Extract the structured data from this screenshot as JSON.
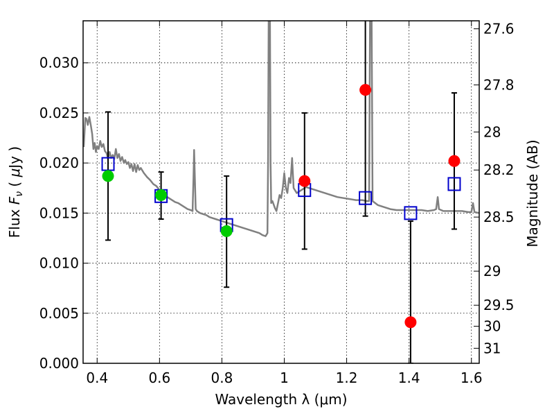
{
  "chart_data": {
    "type": "scatter",
    "xlabel": "Wavelength  λ (μm)",
    "ylabel_parts": [
      "Flux ",
      "F",
      "ν",
      "  ( ",
      "μ",
      "Jy )"
    ],
    "ylabel_right": "Magnitude (AB)",
    "xlim": [
      0.355,
      1.625
    ],
    "ylim": [
      0.0,
      0.0342
    ],
    "x_ticks": [
      0.4,
      0.6,
      0.8,
      1.0,
      1.2,
      1.4,
      1.6
    ],
    "x_tick_labels": [
      "0.4",
      "0.6",
      "0.8",
      "1",
      "1.2",
      "1.4",
      "1.6"
    ],
    "y_ticks": [
      0.0,
      0.005,
      0.01,
      0.015,
      0.02,
      0.025,
      0.03
    ],
    "y_tick_labels": [
      "0.000",
      "0.005",
      "0.010",
      "0.015",
      "0.020",
      "0.025",
      "0.030"
    ],
    "right_ticks": [
      {
        "label": "27.6",
        "flux": 0.0334
      },
      {
        "label": "27.8",
        "flux": 0.0278
      },
      {
        "label": "28",
        "flux": 0.0231
      },
      {
        "label": "28.2",
        "flux": 0.0193
      },
      {
        "label": "28.5",
        "flux": 0.0146
      },
      {
        "label": "29",
        "flux": 0.0092
      },
      {
        "label": "29.5",
        "flux": 0.0058
      },
      {
        "label": "30",
        "flux": 0.0037
      },
      {
        "label": "31",
        "flux": 0.0015
      }
    ],
    "grid": true,
    "model_spectrum": {
      "color": "#808080",
      "points": [
        [
          0.357,
          0.0216
        ],
        [
          0.362,
          0.0245
        ],
        [
          0.366,
          0.0244
        ],
        [
          0.37,
          0.0238
        ],
        [
          0.375,
          0.0246
        ],
        [
          0.38,
          0.0237
        ],
        [
          0.384,
          0.0229
        ],
        [
          0.388,
          0.0214
        ],
        [
          0.392,
          0.022
        ],
        [
          0.396,
          0.0211
        ],
        [
          0.4,
          0.0217
        ],
        [
          0.405,
          0.0214
        ],
        [
          0.41,
          0.0222
        ],
        [
          0.415,
          0.0216
        ],
        [
          0.42,
          0.0219
        ],
        [
          0.425,
          0.0212
        ],
        [
          0.43,
          0.021
        ],
        [
          0.435,
          0.0204
        ],
        [
          0.44,
          0.0211
        ],
        [
          0.445,
          0.0205
        ],
        [
          0.45,
          0.0208
        ],
        [
          0.455,
          0.0204
        ],
        [
          0.46,
          0.0214
        ],
        [
          0.465,
          0.0205
        ],
        [
          0.47,
          0.0209
        ],
        [
          0.475,
          0.0202
        ],
        [
          0.48,
          0.0206
        ],
        [
          0.486,
          0.02
        ],
        [
          0.49,
          0.0203
        ],
        [
          0.495,
          0.0199
        ],
        [
          0.5,
          0.0201
        ],
        [
          0.505,
          0.0195
        ],
        [
          0.51,
          0.0199
        ],
        [
          0.515,
          0.0192
        ],
        [
          0.52,
          0.0199
        ],
        [
          0.525,
          0.0191
        ],
        [
          0.53,
          0.0198
        ],
        [
          0.535,
          0.0193
        ],
        [
          0.54,
          0.0195
        ],
        [
          0.55,
          0.019
        ],
        [
          0.56,
          0.0186
        ],
        [
          0.57,
          0.0183
        ],
        [
          0.58,
          0.0179
        ],
        [
          0.59,
          0.0177
        ],
        [
          0.6,
          0.0173
        ],
        [
          0.61,
          0.017
        ],
        [
          0.62,
          0.0167
        ],
        [
          0.63,
          0.0165
        ],
        [
          0.64,
          0.0163
        ],
        [
          0.65,
          0.0161
        ],
        [
          0.66,
          0.016
        ],
        [
          0.67,
          0.0158
        ],
        [
          0.68,
          0.0156
        ],
        [
          0.69,
          0.0154
        ],
        [
          0.7,
          0.0153
        ],
        [
          0.706,
          0.0152
        ],
        [
          0.709,
          0.0185
        ],
        [
          0.711,
          0.0213
        ],
        [
          0.713,
          0.019
        ],
        [
          0.716,
          0.0154
        ],
        [
          0.72,
          0.0152
        ],
        [
          0.73,
          0.015
        ],
        [
          0.74,
          0.0149
        ],
        [
          0.75,
          0.0148
        ],
        [
          0.76,
          0.0146
        ],
        [
          0.77,
          0.0145
        ],
        [
          0.78,
          0.0144
        ],
        [
          0.79,
          0.0143
        ],
        [
          0.8,
          0.0142
        ],
        [
          0.82,
          0.014
        ],
        [
          0.84,
          0.0138
        ],
        [
          0.86,
          0.0136
        ],
        [
          0.88,
          0.0134
        ],
        [
          0.9,
          0.0132
        ],
        [
          0.92,
          0.013
        ],
        [
          0.93,
          0.0128
        ],
        [
          0.94,
          0.0127
        ],
        [
          0.946,
          0.013
        ],
        [
          0.948,
          0.02
        ],
        [
          0.95,
          0.035
        ],
        [
          0.954,
          0.035
        ],
        [
          0.956,
          0.02
        ],
        [
          0.958,
          0.016
        ],
        [
          0.962,
          0.0162
        ],
        [
          0.97,
          0.0155
        ],
        [
          0.975,
          0.0152
        ],
        [
          0.98,
          0.016
        ],
        [
          0.985,
          0.0168
        ],
        [
          0.99,
          0.0165
        ],
        [
          0.995,
          0.0175
        ],
        [
          1.0,
          0.019
        ],
        [
          1.005,
          0.0175
        ],
        [
          1.01,
          0.017
        ],
        [
          1.015,
          0.0185
        ],
        [
          1.02,
          0.018
        ],
        [
          1.025,
          0.0205
        ],
        [
          1.03,
          0.0175
        ],
        [
          1.04,
          0.017
        ],
        [
          1.05,
          0.0172
        ],
        [
          1.07,
          0.0176
        ],
        [
          1.09,
          0.0174
        ],
        [
          1.11,
          0.0172
        ],
        [
          1.13,
          0.017
        ],
        [
          1.15,
          0.0168
        ],
        [
          1.17,
          0.0166
        ],
        [
          1.19,
          0.0165
        ],
        [
          1.21,
          0.0164
        ],
        [
          1.23,
          0.0163
        ],
        [
          1.25,
          0.0163
        ],
        [
          1.265,
          0.0162
        ],
        [
          1.272,
          0.0162
        ],
        [
          1.275,
          0.035
        ],
        [
          1.28,
          0.035
        ],
        [
          1.283,
          0.0162
        ],
        [
          1.3,
          0.0158
        ],
        [
          1.32,
          0.0156
        ],
        [
          1.34,
          0.0154
        ],
        [
          1.36,
          0.0153
        ],
        [
          1.38,
          0.0153
        ],
        [
          1.4,
          0.0153
        ],
        [
          1.42,
          0.0153
        ],
        [
          1.44,
          0.0153
        ],
        [
          1.46,
          0.0152
        ],
        [
          1.48,
          0.0153
        ],
        [
          1.487,
          0.0154
        ],
        [
          1.492,
          0.0166
        ],
        [
          1.496,
          0.0154
        ],
        [
          1.51,
          0.0152
        ],
        [
          1.53,
          0.0152
        ],
        [
          1.55,
          0.0152
        ],
        [
          1.57,
          0.0152
        ],
        [
          1.59,
          0.0151
        ],
        [
          1.6,
          0.0151
        ],
        [
          1.605,
          0.016
        ],
        [
          1.61,
          0.0151
        ],
        [
          1.625,
          0.015
        ]
      ]
    },
    "model_photometry": {
      "marker": "open-square",
      "color": "#0000cc",
      "points": [
        [
          0.435,
          0.0199
        ],
        [
          0.605,
          0.0167
        ],
        [
          0.815,
          0.0138
        ],
        [
          1.065,
          0.0173
        ],
        [
          1.26,
          0.0165
        ],
        [
          1.405,
          0.015
        ],
        [
          1.545,
          0.0179
        ]
      ]
    },
    "observed_error_bars": {
      "color": "#000000",
      "points": [
        {
          "x": 0.435,
          "low": 0.0123,
          "high": 0.0251
        },
        {
          "x": 0.605,
          "low": 0.0144,
          "high": 0.0191
        },
        {
          "x": 0.815,
          "low": 0.0076,
          "high": 0.0187
        },
        {
          "x": 1.065,
          "low": 0.0114,
          "high": 0.025
        },
        {
          "x": 1.26,
          "low": 0.0147,
          "high": 0.035
        },
        {
          "x": 1.405,
          "low": 0.0,
          "high": 0.0142
        },
        {
          "x": 1.545,
          "low": 0.0134,
          "high": 0.027
        }
      ]
    },
    "observed_optical": {
      "marker": "filled-circle",
      "color": "#00cc00",
      "points": [
        [
          0.435,
          0.0187
        ],
        [
          0.605,
          0.0168
        ],
        [
          0.815,
          0.0132
        ]
      ]
    },
    "observed_nir": {
      "marker": "filled-circle",
      "color": "#ff0000",
      "points": [
        [
          1.065,
          0.0182
        ],
        [
          1.26,
          0.0273
        ],
        [
          1.405,
          0.0041
        ],
        [
          1.545,
          0.0202
        ]
      ]
    }
  }
}
